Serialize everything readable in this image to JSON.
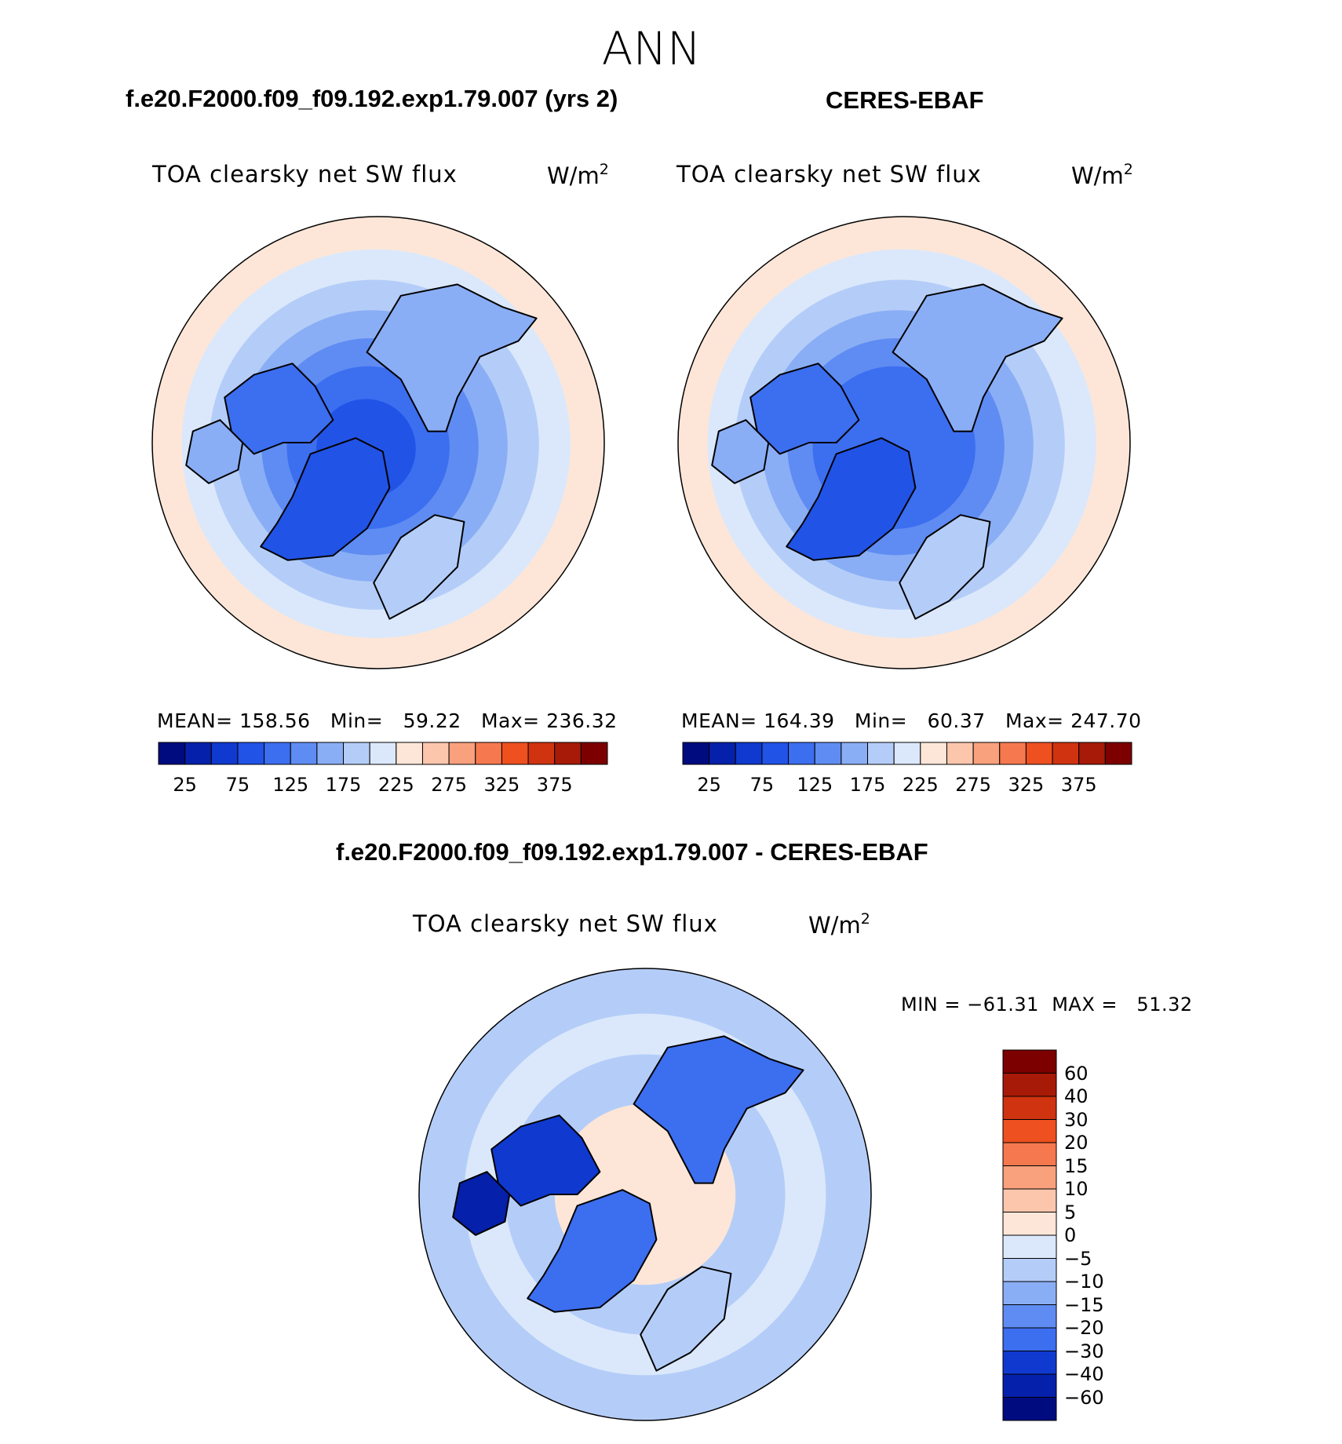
{
  "page": {
    "title": "ANN"
  },
  "panels": [
    {
      "id": "model",
      "header": "f.e20.F2000.f09_f09.192.exp1.79.007 (yrs 2)",
      "variable": "TOA clearsky net SW flux",
      "units": "W/m",
      "units_sup": "2",
      "stats": {
        "mean_label": "MEAN=",
        "mean": "158.56",
        "min_label": "Min=",
        "min": "59.22",
        "max_label": "Max=",
        "max": "236.32"
      }
    },
    {
      "id": "obs",
      "header": "CERES-EBAF",
      "variable": "TOA clearsky net SW flux",
      "units": "W/m",
      "units_sup": "2",
      "stats": {
        "mean_label": "MEAN=",
        "mean": "164.39",
        "min_label": "Min=",
        "min": "60.37",
        "max_label": "Max=",
        "max": "247.70"
      }
    },
    {
      "id": "diff",
      "header": "f.e20.F2000.f09_f09.192.exp1.79.007 - CERES-EBAF",
      "variable": "TOA clearsky net SW flux",
      "units": "W/m",
      "units_sup": "2",
      "stats": {
        "min_label": "MIN =",
        "min": "−61.31",
        "max_label": "MAX =",
        "max": "51.32"
      }
    }
  ],
  "chart_data": [
    {
      "type": "heatmap",
      "projection": "north-polar-stereographic",
      "title": "f.e20.F2000.f09_f09.192.exp1.79.007 (yrs 2)",
      "variable": "TOA clearsky net SW flux",
      "units": "W/m2",
      "mean": 158.56,
      "min": 59.22,
      "max": 236.32,
      "colorbar": {
        "orientation": "horizontal",
        "ticks": [
          "25",
          "75",
          "125",
          "175",
          "225",
          "275",
          "325",
          "375"
        ],
        "levels": [
          25,
          50,
          75,
          100,
          125,
          150,
          175,
          200,
          225,
          250,
          275,
          300,
          325,
          350,
          375
        ],
        "colors": [
          "#000b80",
          "#0520aa",
          "#1039cf",
          "#2153e6",
          "#3c6ef0",
          "#5f8cf2",
          "#8aaef5",
          "#b4cdf8",
          "#dbe8fb",
          "#fde6d8",
          "#fcc6ad",
          "#f9a07c",
          "#f6784f",
          "#ee5020",
          "#cf3310",
          "#a81a08",
          "#7d0000"
        ]
      },
      "bands": [
        {
          "r": 1.0,
          "value": 230
        },
        {
          "r": 0.86,
          "value": 205
        },
        {
          "r": 0.73,
          "value": 190
        },
        {
          "r": 0.6,
          "value": 165
        },
        {
          "r": 0.48,
          "value": 140
        },
        {
          "r": 0.36,
          "value": 115
        },
        {
          "r": 0.22,
          "value": 95
        }
      ]
    },
    {
      "type": "heatmap",
      "projection": "north-polar-stereographic",
      "title": "CERES-EBAF",
      "variable": "TOA clearsky net SW flux",
      "units": "W/m2",
      "mean": 164.39,
      "min": 60.37,
      "max": 247.7,
      "colorbar": {
        "orientation": "horizontal",
        "ticks": [
          "25",
          "75",
          "125",
          "175",
          "225",
          "275",
          "325",
          "375"
        ],
        "levels": [
          25,
          50,
          75,
          100,
          125,
          150,
          175,
          200,
          225,
          250,
          275,
          300,
          325,
          350,
          375
        ],
        "colors": [
          "#000b80",
          "#0520aa",
          "#1039cf",
          "#2153e6",
          "#3c6ef0",
          "#5f8cf2",
          "#8aaef5",
          "#b4cdf8",
          "#dbe8fb",
          "#fde6d8",
          "#fcc6ad",
          "#f9a07c",
          "#f6784f",
          "#ee5020",
          "#cf3310",
          "#a81a08",
          "#7d0000"
        ]
      },
      "bands": [
        {
          "r": 1.0,
          "value": 235
        },
        {
          "r": 0.86,
          "value": 212
        },
        {
          "r": 0.73,
          "value": 192
        },
        {
          "r": 0.6,
          "value": 170
        },
        {
          "r": 0.48,
          "value": 145
        },
        {
          "r": 0.36,
          "value": 122
        },
        {
          "r": 0.22,
          "value": 105
        }
      ]
    },
    {
      "type": "heatmap",
      "projection": "north-polar-stereographic",
      "title": "f.e20.F2000.f09_f09.192.exp1.79.007 - CERES-EBAF",
      "variable": "TOA clearsky net SW flux",
      "units": "W/m2",
      "min": -61.31,
      "max": 51.32,
      "colorbar": {
        "orientation": "vertical",
        "ticks": [
          "60",
          "40",
          "30",
          "20",
          "15",
          "10",
          "5",
          "0",
          "−5",
          "−10",
          "−15",
          "−20",
          "−30",
          "−40",
          "−60"
        ],
        "colors": [
          "#7d0000",
          "#a81a08",
          "#cf3310",
          "#ee5020",
          "#f6784f",
          "#f9a07c",
          "#fcc6ad",
          "#fde6d8",
          "#dbe8fb",
          "#b4cdf8",
          "#8aaef5",
          "#5f8cf2",
          "#3c6ef0",
          "#1039cf",
          "#0520aa",
          "#000b80"
        ]
      },
      "bands": [
        {
          "r": 1.0,
          "value": -7
        },
        {
          "r": 0.8,
          "value": -3
        },
        {
          "r": 0.62,
          "value": -8
        },
        {
          "r": 0.4,
          "value": 3
        }
      ]
    }
  ]
}
